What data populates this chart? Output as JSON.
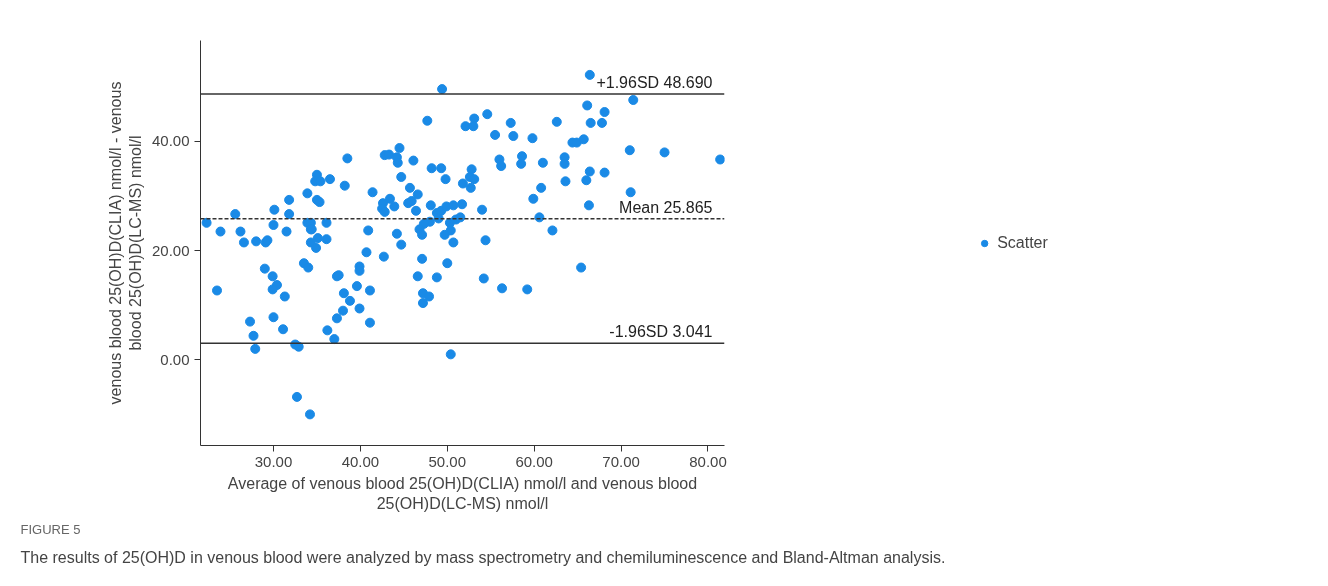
{
  "chart_data": {
    "type": "scatter",
    "xlabel": "Average of venous blood 25(OH)D(CLIA) nmol/l and venous blood 25(OH)D(LC-MS) nmol/l",
    "ylabel": "venous blood 25(OH)D(CLIA) nmol/l - venous blood 25(OH)D(LC-MS) nmol/l",
    "annotations": [
      "FIGURE 5",
      "The results of 25(OH)D in venous blood were analyzed by mass spectrometry and chemiluminescence and Bland-Altman analysis."
    ],
    "xlim": [
      21.6,
      81.9
    ],
    "ylim": [
      -15.7,
      58.5
    ],
    "xticks": [
      {
        "value": 30,
        "label": "30.00"
      },
      {
        "value": 40,
        "label": "40.00"
      },
      {
        "value": 50,
        "label": "50.00"
      },
      {
        "value": 60,
        "label": "60.00"
      },
      {
        "value": 70,
        "label": "70.00"
      },
      {
        "value": 80,
        "label": "80.00"
      }
    ],
    "yticks": [
      {
        "value": 0,
        "label": "0.00"
      },
      {
        "value": 20,
        "label": "20.00"
      },
      {
        "value": 40,
        "label": "40.00"
      }
    ],
    "grid": false,
    "legend": "right",
    "marker": "circle",
    "ref_lines": [
      {
        "axis": "y",
        "value": 48.69,
        "label": "+1.96SD 48.690",
        "color": "#333333",
        "line_style": "solid"
      },
      {
        "axis": "y",
        "value": 25.865,
        "label": "Mean 25.865",
        "color": "#333333",
        "line_style": "dashed"
      },
      {
        "axis": "y",
        "value": 3.041,
        "label": "-1.96SD 3.041",
        "color": "#333333",
        "line_style": "solid"
      }
    ],
    "series": [
      {
        "name": "Scatter",
        "color": "#1a8ae6",
        "x": [
          22.3,
          23.9,
          25.6,
          26.2,
          26.6,
          28.0,
          29.1,
          29.3,
          23.5,
          29.0,
          29.9,
          30.4,
          29.9,
          31.3,
          27.3,
          27.7,
          27.9,
          30.0,
          31.1,
          32.5,
          32.9,
          32.7,
          34.2,
          30.1,
          30.0,
          31.8,
          31.8,
          31.5,
          33.9,
          35.0,
          34.8,
          35.4,
          35.0,
          35.3,
          33.9,
          34.3,
          34.3,
          34.4,
          35.1,
          34.3,
          34.9,
          33.5,
          34.0,
          36.5,
          36.1,
          36.1,
          38.5,
          38.2,
          41.4,
          40.9,
          40.7,
          39.9,
          39.9,
          37.3,
          37.5,
          38.1,
          38.8,
          39.6,
          41.1,
          39.9,
          38.0,
          37.3,
          36.2,
          37.0,
          41.1,
          49.4,
          47.7,
          52.1,
          53.0,
          53.1,
          54.6,
          55.5,
          57.3,
          57.6,
          59.8,
          42.8,
          43.3,
          44.5,
          44.2,
          44.3,
          46.1,
          48.2,
          49.3,
          49.8,
          44.7,
          45.7,
          46.6,
          45.5,
          45.9,
          43.4,
          42.6,
          42.5,
          42.8,
          43.9,
          46.4,
          48.1,
          48.8,
          49.3,
          49.0,
          49.9,
          50.7,
          51.7,
          51.8,
          52.7,
          52.6,
          53.1,
          52.8,
          56.0,
          56.2,
          58.6,
          58.5,
          61.0,
          60.8,
          59.9,
          60.6,
          54.0,
          48.0,
          51.0,
          51.5,
          50.3,
          50.4,
          47.3,
          46.8,
          47.1,
          49.7,
          50.7,
          44.2,
          44.7,
          42.7,
          47.1,
          50.0,
          54.4,
          46.6,
          48.8,
          54.2,
          56.3,
          59.2,
          47.2,
          47.9,
          47.2,
          50.4,
          66.4,
          66.1,
          71.4,
          68.1,
          62.6,
          66.5,
          67.8,
          64.4,
          64.9,
          65.7,
          63.5,
          63.5,
          66.4,
          68.1,
          63.6,
          66.0,
          66.3,
          71.0,
          71.1,
          75.0,
          81.4,
          62.1,
          65.4
        ],
        "values": [
          25.1,
          23.5,
          26.7,
          23.5,
          21.5,
          21.7,
          21.5,
          21.9,
          12.7,
          16.7,
          15.3,
          13.7,
          12.9,
          11.6,
          7.0,
          4.4,
          2.0,
          7.8,
          5.6,
          2.8,
          2.4,
          -6.8,
          -10.0,
          27.5,
          24.7,
          29.3,
          26.7,
          23.5,
          30.5,
          33.9,
          32.7,
          32.7,
          29.3,
          28.9,
          25.1,
          25.1,
          23.9,
          23.9,
          22.3,
          21.5,
          20.5,
          17.7,
          16.9,
          33.1,
          25.1,
          22.1,
          36.9,
          31.9,
          30.7,
          23.7,
          19.7,
          17.1,
          16.3,
          15.3,
          15.5,
          12.2,
          10.8,
          13.5,
          12.7,
          9.4,
          9.0,
          7.6,
          5.4,
          3.8,
          6.8,
          49.6,
          43.8,
          42.8,
          42.8,
          44.2,
          45.0,
          41.2,
          43.4,
          41.0,
          40.6,
          37.5,
          37.6,
          38.8,
          37.1,
          36.1,
          36.5,
          35.1,
          35.1,
          33.1,
          33.5,
          31.5,
          30.3,
          28.7,
          29.1,
          29.5,
          28.7,
          27.7,
          27.1,
          28.1,
          27.3,
          28.3,
          26.9,
          27.3,
          25.9,
          28.1,
          28.3,
          28.5,
          32.3,
          31.5,
          33.5,
          33.1,
          34.9,
          36.7,
          35.5,
          37.3,
          35.9,
          36.1,
          31.5,
          29.5,
          26.1,
          27.5,
          25.3,
          25.7,
          26.1,
          25.1,
          23.7,
          24.9,
          23.9,
          22.9,
          22.9,
          21.5,
          23.1,
          21.1,
          18.9,
          18.5,
          17.7,
          21.9,
          15.3,
          15.1,
          14.9,
          13.1,
          12.9,
          12.2,
          11.6,
          10.4,
          1.0,
          52.2,
          46.6,
          47.6,
          45.4,
          43.6,
          43.4,
          43.4,
          39.8,
          39.8,
          40.4,
          37.1,
          35.9,
          34.5,
          34.3,
          32.7,
          32.9,
          28.3,
          38.4,
          30.7,
          38.0,
          36.7,
          23.7,
          16.9
        ]
      }
    ]
  }
}
